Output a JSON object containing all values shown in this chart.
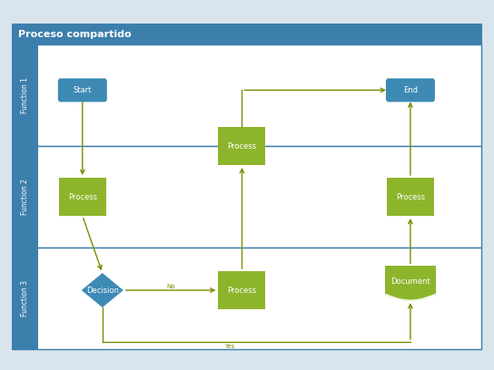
{
  "title": "Proceso compartido",
  "title_bg": "#3d7fac",
  "title_text_color": "white",
  "lane_label_bg": "#3d7fac",
  "lane_label_text_color": "white",
  "lane_labels": [
    "Function 1",
    "Function 2",
    "Function 3"
  ],
  "outer_bg": "#c8d8e8",
  "diagram_bg": "white",
  "border_color": "#3d7fac",
  "lane_line_color": "#3d7fac",
  "blue_shape_color": "#3d8ab5",
  "green_shape_color": "#8db52c",
  "arrow_color": "#7a8c00",
  "shape_text_color": "white",
  "fig_w": 5.44,
  "fig_h": 4.08,
  "dpi": 100
}
